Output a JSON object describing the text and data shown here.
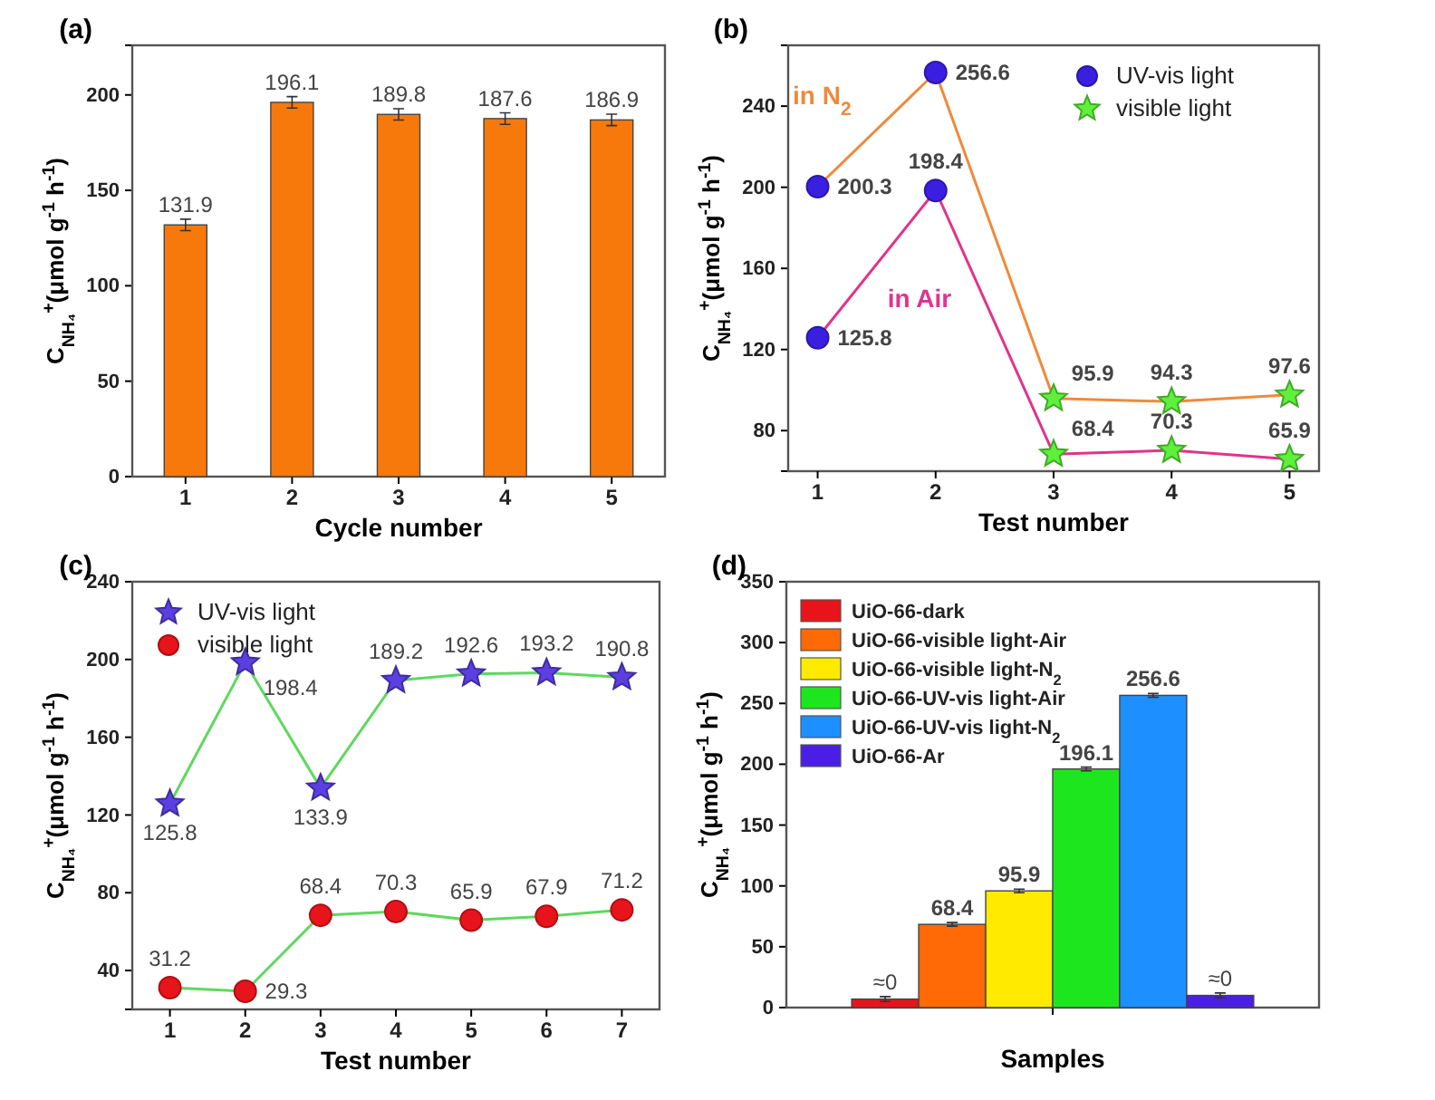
{
  "chart_data": [
    {
      "type": "bar",
      "title": "(a)",
      "xlabel": "Cycle number",
      "ylabel": "C$_{NH₄}$$^{+}$(μmol g$^{-1}$ h$^{-1}$)",
      "categories": [
        "1",
        "2",
        "3",
        "4",
        "5"
      ],
      "values": [
        131.9,
        196.1,
        189.8,
        187.6,
        186.9
      ],
      "errors": [
        3,
        3,
        3,
        3,
        3
      ],
      "color": "#f7790c",
      "ylim": [
        0,
        226
      ],
      "yticks": [
        0,
        50,
        100,
        150,
        200
      ],
      "data_labels": true,
      "grid": false
    },
    {
      "type": "line",
      "title": "(b)",
      "xlabel": "Test number",
      "ylabel": "C$_{NH₄}$$^{+}$(μmol g$^{-1}$ h$^{-1}$)",
      "x": [
        1,
        2,
        3,
        4,
        5
      ],
      "xlim": [
        0.75,
        5.25
      ],
      "xticks": [
        1,
        2,
        3,
        4,
        5
      ],
      "ylim": [
        60,
        270
      ],
      "yticks": [
        80,
        120,
        160,
        200,
        240
      ],
      "legend": "top right",
      "grid": false,
      "series": [
        {
          "name": "in N$_{2}$",
          "color": "#ee8a3c",
          "marker": "none",
          "values": [
            200.3,
            256.6,
            95.9,
            94.3,
            97.6
          ],
          "value_labels": [
            "200.3",
            "256.6",
            "95.9",
            "94.3",
            "97.6"
          ]
        },
        {
          "name": "in Air",
          "color": "#e0348c",
          "marker": "none",
          "values": [
            125.8,
            198.4,
            68.4,
            70.3,
            65.9
          ],
          "value_labels": [
            "125.8",
            "198.4",
            "68.4",
            "70.3",
            "65.9"
          ]
        },
        {
          "name": "UV-vis light",
          "type": "scatter",
          "color": "#3b1fe0",
          "marker": "circle",
          "x": [
            1,
            2,
            1,
            2
          ],
          "values": [
            200.3,
            256.6,
            125.8,
            198.4
          ]
        },
        {
          "name": "visible light",
          "type": "scatter",
          "color": "#5ef03a",
          "marker": "star",
          "x": [
            3,
            4,
            5,
            3,
            4,
            5
          ],
          "values": [
            95.9,
            94.3,
            97.6,
            68.4,
            70.3,
            65.9
          ]
        }
      ]
    },
    {
      "type": "line",
      "title": "(c)",
      "xlabel": "Test number",
      "ylabel": "C$_{NH₄}$$^{+}$(μmol g$^{-1}$ h$^{-1}$)",
      "x": [
        1,
        2,
        3,
        4,
        5,
        6,
        7
      ],
      "xlim": [
        0.5,
        7.5
      ],
      "xticks": [
        1,
        2,
        3,
        4,
        5,
        6,
        7
      ],
      "ylim": [
        20,
        240
      ],
      "yticks": [
        40,
        80,
        120,
        160,
        200,
        240
      ],
      "legend": "top left",
      "grid": false,
      "series": [
        {
          "color": "#5fd85f",
          "marker": "none",
          "values": [
            125.8,
            198.4,
            133.9,
            189.2,
            192.6,
            193.2,
            190.8
          ],
          "value_labels": [
            "125.8",
            "198.4",
            "133.9",
            "189.2",
            "192.6",
            "193.2",
            "190.8"
          ]
        },
        {
          "color": "#5fd85f",
          "marker": "none",
          "values": [
            31.2,
            29.3,
            68.4,
            70.3,
            65.9,
            67.9,
            71.2
          ],
          "value_labels": [
            "31.2",
            "29.3",
            "68.4",
            "70.3",
            "65.9",
            "67.9",
            "71.2"
          ]
        },
        {
          "name": "UV-vis light",
          "type": "scatter",
          "color": "#5b3fe0",
          "marker": "star",
          "values": [
            125.8,
            198.4,
            133.9,
            189.2,
            192.6,
            193.2,
            190.8
          ]
        },
        {
          "name": "visible light",
          "type": "scatter",
          "color": "#e8141b",
          "marker": "circle",
          "values": [
            31.2,
            29.3,
            68.4,
            70.3,
            65.9,
            67.9,
            71.2
          ]
        }
      ]
    },
    {
      "type": "bar",
      "title": "(d)",
      "xlabel": "Samples",
      "ylabel": "C$_{NH₄}$$^{+}$(μmol g$^{-1}$ h$^{-1}$)",
      "categories": [
        null
      ],
      "ylim": [
        0,
        350
      ],
      "yticks": [
        0,
        50,
        100,
        150,
        200,
        250,
        300,
        350
      ],
      "legend": "top left",
      "data_labels": true,
      "grid": false,
      "series": [
        {
          "name": "UiO-66-dark",
          "color": "#e8141b",
          "values": [
            7
          ],
          "errors": [
            2
          ],
          "value_labels": [
            null
          ]
        },
        {
          "name": "UiO-66-visible light-Air",
          "color": "#ff6a06",
          "values": [
            68.4
          ],
          "errors": [
            1.5
          ]
        },
        {
          "name": "UiO-66-visible light-N$_{2}$",
          "color": "#ffea00",
          "values": [
            95.9
          ],
          "errors": [
            1.5
          ]
        },
        {
          "name": "UiO-66-UV-vis light-Air",
          "color": "#1ee61e",
          "values": [
            196.1
          ],
          "errors": [
            1.5
          ]
        },
        {
          "name": "UiO-66-UV-vis light-N$_{2}$",
          "color": "#1e8fff",
          "values": [
            256.6
          ],
          "errors": [
            1.5
          ]
        },
        {
          "name": "UiO-66-Ar",
          "color": "#4b1ee6",
          "values": [
            10
          ],
          "errors": [
            2
          ],
          "value_labels": [
            null
          ]
        }
      ],
      "annotations": [
        {
          "text": "≈0",
          "y": 7
        },
        {
          "text": "≈0",
          "y": 10
        }
      ]
    }
  ]
}
